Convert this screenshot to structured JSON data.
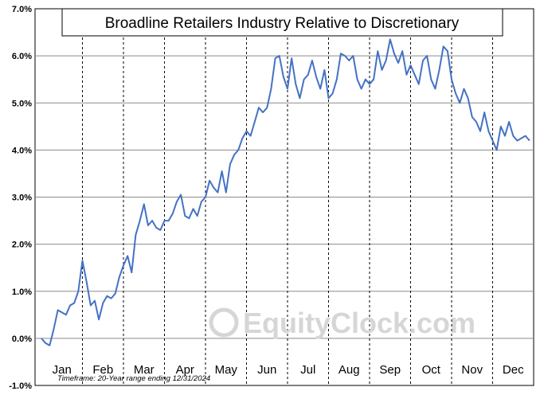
{
  "chart_data": {
    "type": "line",
    "title": "Broadline Retailers Industry Relative to Discretionary",
    "ylim": [
      -1.0,
      7.0
    ],
    "y_ticks": [
      "7.0%",
      "6.0%",
      "5.0%",
      "4.0%",
      "3.0%",
      "2.0%",
      "1.0%",
      "0.0%",
      "-1.0%"
    ],
    "y_tick_values": [
      7,
      6,
      5,
      4,
      3,
      2,
      1,
      0,
      -1
    ],
    "categories": [
      "Jan",
      "Feb",
      "Mar",
      "Apr",
      "May",
      "Jun",
      "Jul",
      "Aug",
      "Sep",
      "Oct",
      "Nov",
      "Dec"
    ],
    "grid": true,
    "line_color": "#4472c4",
    "series": [
      {
        "x": [
          0.0,
          0.1,
          0.2,
          0.3,
          0.4,
          0.5,
          0.6,
          0.7,
          0.8,
          0.9,
          1.0,
          1.1,
          1.2,
          1.3,
          1.4,
          1.5,
          1.6,
          1.7,
          1.8,
          1.9,
          2.0,
          2.1,
          2.2,
          2.3,
          2.4,
          2.5,
          2.6,
          2.7,
          2.8,
          2.9,
          3.0,
          3.1,
          3.2,
          3.3,
          3.4,
          3.5,
          3.6,
          3.7,
          3.8,
          3.9,
          4.0,
          4.1,
          4.2,
          4.3,
          4.4,
          4.5,
          4.6,
          4.7,
          4.8,
          4.9,
          5.0,
          5.1,
          5.2,
          5.3,
          5.4,
          5.5,
          5.6,
          5.7,
          5.8,
          5.9,
          6.0,
          6.1,
          6.2,
          6.3,
          6.4,
          6.5,
          6.6,
          6.7,
          6.8,
          6.9,
          7.0,
          7.1,
          7.2,
          7.3,
          7.4,
          7.5,
          7.6,
          7.7,
          7.8,
          7.9,
          8.0,
          8.1,
          8.2,
          8.3,
          8.4,
          8.5,
          8.6,
          8.7,
          8.8,
          8.9,
          9.0,
          9.1,
          9.2,
          9.3,
          9.4,
          9.5,
          9.6,
          9.7,
          9.8,
          9.9,
          10.0,
          10.1,
          10.2,
          10.3,
          10.4,
          10.5,
          10.6,
          10.7,
          10.8,
          10.9,
          11.0,
          11.1,
          11.2,
          11.3,
          11.4,
          11.5,
          11.6,
          11.7,
          11.8,
          11.9
        ],
        "values": [
          0.0,
          -0.1,
          -0.15,
          0.2,
          0.6,
          0.55,
          0.5,
          0.7,
          0.75,
          1.0,
          1.65,
          1.2,
          0.7,
          0.8,
          0.4,
          0.75,
          0.9,
          0.85,
          0.95,
          1.3,
          1.55,
          1.75,
          1.4,
          2.2,
          2.5,
          2.85,
          2.4,
          2.5,
          2.35,
          2.3,
          2.5,
          2.5,
          2.65,
          2.9,
          3.05,
          2.6,
          2.55,
          2.75,
          2.6,
          2.9,
          3.0,
          3.35,
          3.2,
          3.1,
          3.55,
          3.1,
          3.7,
          3.9,
          4.0,
          4.25,
          4.4,
          4.3,
          4.6,
          4.9,
          4.8,
          4.9,
          5.3,
          5.95,
          6.0,
          5.55,
          5.3,
          5.95,
          5.4,
          5.1,
          5.5,
          5.6,
          5.9,
          5.55,
          5.3,
          5.7,
          5.1,
          5.2,
          5.5,
          6.05,
          6.0,
          5.9,
          6.0,
          5.5,
          5.3,
          5.5,
          5.4,
          5.5,
          6.1,
          5.7,
          5.9,
          6.35,
          6.05,
          5.85,
          6.1,
          5.6,
          5.8,
          5.6,
          5.4,
          5.9,
          6.0,
          5.5,
          5.3,
          5.7,
          6.2,
          6.1,
          5.5,
          5.2,
          5.0,
          5.3,
          5.1,
          4.7,
          4.6,
          4.4,
          4.8,
          4.4,
          4.2,
          4.0,
          4.5,
          4.3,
          4.6,
          4.3,
          4.2,
          4.25,
          4.3,
          4.2
        ]
      }
    ]
  },
  "footnote": "Timeframe: 20-Year range ending 12/31/2024",
  "watermark": "EquityClock.com"
}
